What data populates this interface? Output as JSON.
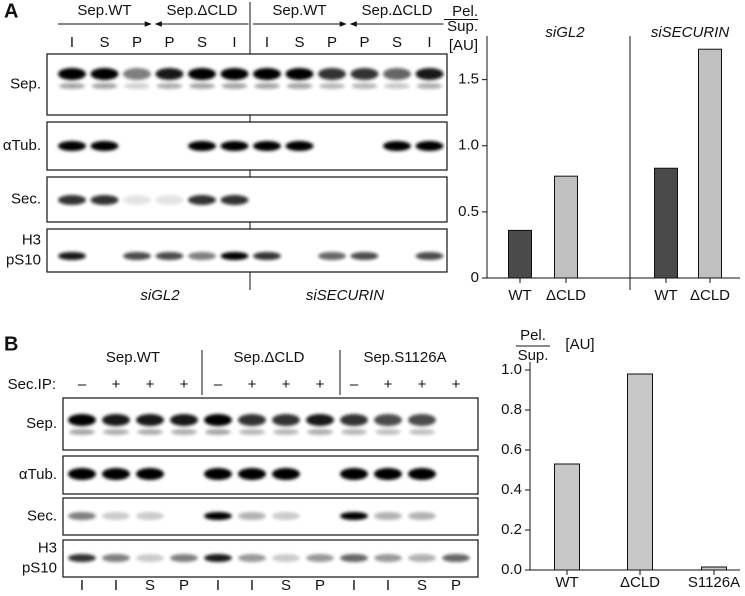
{
  "panel_a": {
    "label": "A",
    "groups": [
      "Sep.WT",
      "Sep.ΔCLD",
      "Sep.WT",
      "Sep.ΔCLD"
    ],
    "lanes": [
      "I",
      "S",
      "P",
      "P",
      "S",
      "I",
      "I",
      "S",
      "P",
      "P",
      "S",
      "I"
    ],
    "rows": [
      [
        "Sep."
      ],
      [
        "αTub."
      ],
      [
        "Sec."
      ],
      [
        "H3",
        "pS10"
      ]
    ],
    "conditions": [
      "siGL2",
      "siSECURIN"
    ]
  },
  "panel_b": {
    "label": "B",
    "groups": [
      "Sep.WT",
      "Sep.ΔCLD",
      "Sep.S1126A"
    ],
    "ip_label": "Sec.IP:",
    "ip": [
      "–",
      "+",
      "+",
      "+",
      "–",
      "+",
      "+",
      "+",
      "–",
      "+",
      "+",
      "+"
    ],
    "rows": [
      [
        "Sep."
      ],
      [
        "αTub."
      ],
      [
        "Sec."
      ],
      [
        "H3",
        "pS10"
      ]
    ],
    "lanes": [
      "I",
      "I",
      "S",
      "P",
      "I",
      "I",
      "S",
      "P",
      "I",
      "I",
      "S",
      "P"
    ]
  },
  "chart_data": [
    {
      "type": "bar",
      "ylabel": {
        "numerator": "Pel.",
        "denominator": "Sup.",
        "unit": "[AU]"
      },
      "group_labels": [
        "siGL2",
        "siSECURIN"
      ],
      "categories": [
        "WT",
        "ΔCLD",
        "WT",
        "ΔCLD"
      ],
      "values": [
        0.36,
        0.77,
        0.83,
        1.73
      ],
      "colors": [
        "#4a4a4a",
        "#c0c0c0",
        "#4a4a4a",
        "#c0c0c0"
      ],
      "ylim": [
        0,
        1.83
      ],
      "yticks": [
        0,
        0.5,
        {
          "value": 1,
          "label": "1.0"
        },
        1.5
      ]
    },
    {
      "type": "bar",
      "ylabel": {
        "numerator": "Pel.",
        "denominator": "Sup.",
        "unit": "[AU]"
      },
      "categories": [
        "WT",
        "ΔCLD",
        "S1126A"
      ],
      "values": [
        0.53,
        0.98,
        0.015
      ],
      "color": "#c8c8c8",
      "ylim": [
        0,
        1.04
      ],
      "yticks": [
        {
          "value": 0,
          "label": "0.0"
        },
        0.2,
        0.4,
        0.6,
        0.8,
        {
          "value": 1,
          "label": "1.0"
        }
      ]
    }
  ]
}
